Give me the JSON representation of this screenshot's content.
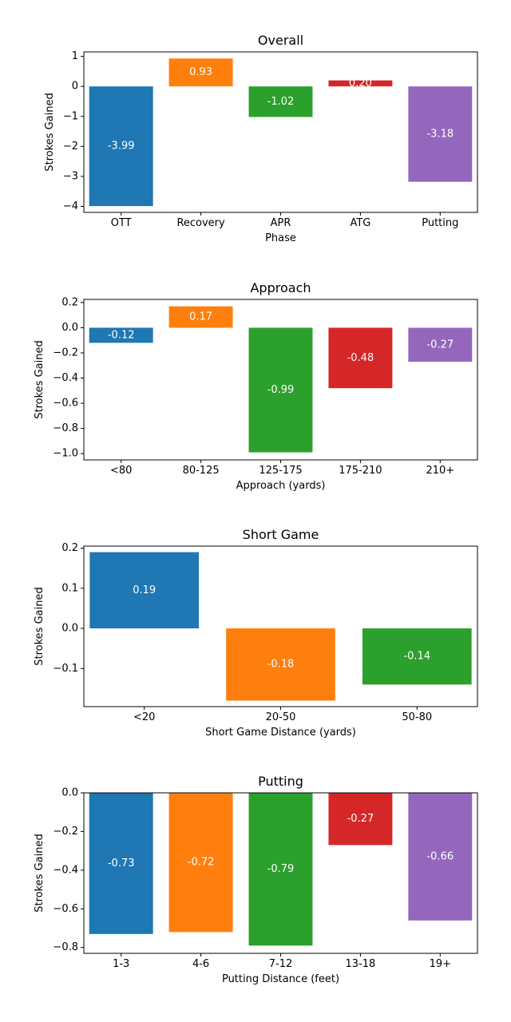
{
  "chart_data": [
    {
      "type": "bar",
      "title": "Overall",
      "xlabel": "Phase",
      "ylabel": "Strokes Gained",
      "categories": [
        "OTT",
        "Recovery",
        "APR",
        "ATG",
        "Putting"
      ],
      "values": [
        -3.99,
        0.93,
        -1.02,
        0.2,
        -3.18
      ],
      "value_labels": [
        "-3.99",
        "0.93",
        "-1.02",
        "0.20",
        "-3.18"
      ],
      "colors": [
        "#1f77b4",
        "#ff7f0e",
        "#2ca02c",
        "#d62728",
        "#9467bd"
      ],
      "ylim": [
        -4.2,
        1.15
      ],
      "yticks": [
        1,
        0,
        -1,
        -2,
        -3,
        -4
      ],
      "ytick_labels": [
        "1",
        "0",
        "−1",
        "−2",
        "−3",
        "−4"
      ],
      "grid": false,
      "legend": "none"
    },
    {
      "type": "bar",
      "title": "Approach",
      "xlabel": "Approach (yards)",
      "ylabel": "Strokes Gained",
      "categories": [
        "<80",
        "80-125",
        "125-175",
        "175-210",
        "210+"
      ],
      "values": [
        -0.12,
        0.17,
        -0.99,
        -0.48,
        -0.27
      ],
      "value_labels": [
        "-0.12",
        "0.17",
        "-0.99",
        "-0.48",
        "-0.27"
      ],
      "colors": [
        "#1f77b4",
        "#ff7f0e",
        "#2ca02c",
        "#d62728",
        "#9467bd"
      ],
      "ylim": [
        -1.05,
        0.225
      ],
      "yticks": [
        0.2,
        0.0,
        -0.2,
        -0.4,
        -0.6,
        -0.8,
        -1.0
      ],
      "ytick_labels": [
        "0.2",
        "0.0",
        "−0.2",
        "−0.4",
        "−0.6",
        "−0.8",
        "−1.0"
      ],
      "grid": false,
      "legend": "none"
    },
    {
      "type": "bar",
      "title": "Short Game",
      "xlabel": "Short Game Distance (yards)",
      "ylabel": "Strokes Gained",
      "categories": [
        "<20",
        "20-50",
        "50-80"
      ],
      "values": [
        0.19,
        -0.18,
        -0.14
      ],
      "value_labels": [
        "0.19",
        "-0.18",
        "-0.14"
      ],
      "colors": [
        "#1f77b4",
        "#ff7f0e",
        "#2ca02c"
      ],
      "ylim": [
        -0.195,
        0.205
      ],
      "yticks": [
        0.2,
        0.1,
        0.0,
        -0.1
      ],
      "ytick_labels": [
        "0.2",
        "0.1",
        "0.0",
        "−0.1"
      ],
      "grid": false,
      "legend": "none"
    },
    {
      "type": "bar",
      "title": "Putting",
      "xlabel": "Putting Distance (feet)",
      "ylabel": "Strokes Gained",
      "categories": [
        "1-3",
        "4-6",
        "7-12",
        "13-18",
        "19+"
      ],
      "values": [
        -0.73,
        -0.72,
        -0.79,
        -0.27,
        -0.66
      ],
      "value_labels": [
        "-0.73",
        "-0.72",
        "-0.79",
        "-0.27",
        "-0.66"
      ],
      "colors": [
        "#1f77b4",
        "#ff7f0e",
        "#2ca02c",
        "#d62728",
        "#9467bd"
      ],
      "ylim": [
        -0.83,
        0.0
      ],
      "yticks": [
        0.0,
        -0.2,
        -0.4,
        -0.6,
        -0.8
      ],
      "ytick_labels": [
        "0.0",
        "−0.2",
        "−0.4",
        "−0.6",
        "−0.8"
      ],
      "grid": false,
      "legend": "none"
    }
  ]
}
